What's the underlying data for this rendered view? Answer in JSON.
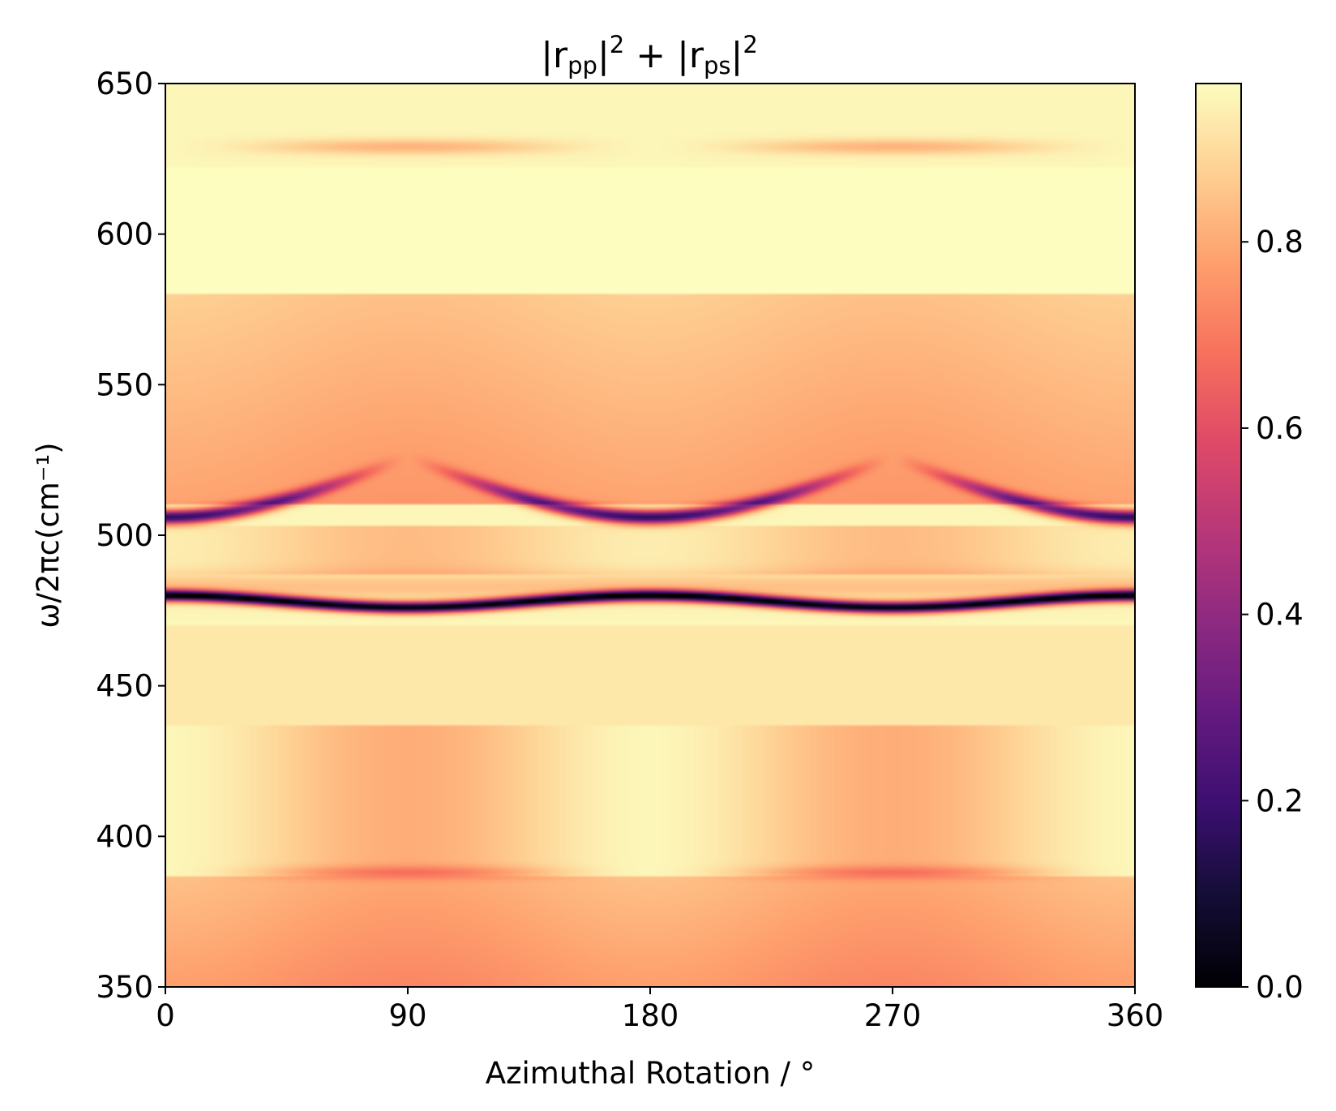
{
  "chart_data": {
    "type": "heatmap",
    "title": "|rpp|2 + |rps|2",
    "title_parts": {
      "bar1": "|",
      "r1": "r",
      "sub1": "pp",
      "bar2": "|",
      "sup1": "2",
      "plus": " + ",
      "bar3": "|",
      "r2": "r",
      "sub2": "ps",
      "bar4": "|",
      "sup2": "2"
    },
    "xlabel": "Azimuthal Rotation / °",
    "ylabel": "ω/2πc(cm⁻¹)",
    "xlim": [
      0,
      360
    ],
    "ylim": [
      350,
      650
    ],
    "xticks": [
      0,
      90,
      180,
      270,
      360
    ],
    "xtick_labels": [
      "0",
      "90",
      "180",
      "270",
      "360"
    ],
    "yticks": [
      350,
      400,
      450,
      500,
      550,
      600,
      650
    ],
    "ytick_labels": [
      "350",
      "400",
      "450",
      "500",
      "550",
      "600",
      "650"
    ],
    "colorbar": {
      "colormap": "magma",
      "range": [
        0,
        0.97
      ],
      "ticks": [
        0.0,
        0.2,
        0.4,
        0.6,
        0.8
      ],
      "tick_labels": [
        "0.0",
        "0.2",
        "0.4",
        "0.6",
        "0.8"
      ]
    },
    "features": [
      {
        "description": "deep reflectivity minimum line",
        "y_center": 478,
        "y_amplitude": 2,
        "period_deg": 180,
        "min_value": 0.0
      },
      {
        "description": "upper crossing-mode minimum",
        "y_min": 506,
        "x_minima": [
          0,
          180,
          360
        ],
        "min_value": 0.15
      },
      {
        "description": "weak absorption band",
        "y": 629,
        "x_centers": [
          90,
          270
        ],
        "min_value": 0.82
      },
      {
        "description": "weak absorption band",
        "y": 388,
        "x_centers": [
          90,
          270
        ],
        "min_value": 0.72
      }
    ]
  }
}
